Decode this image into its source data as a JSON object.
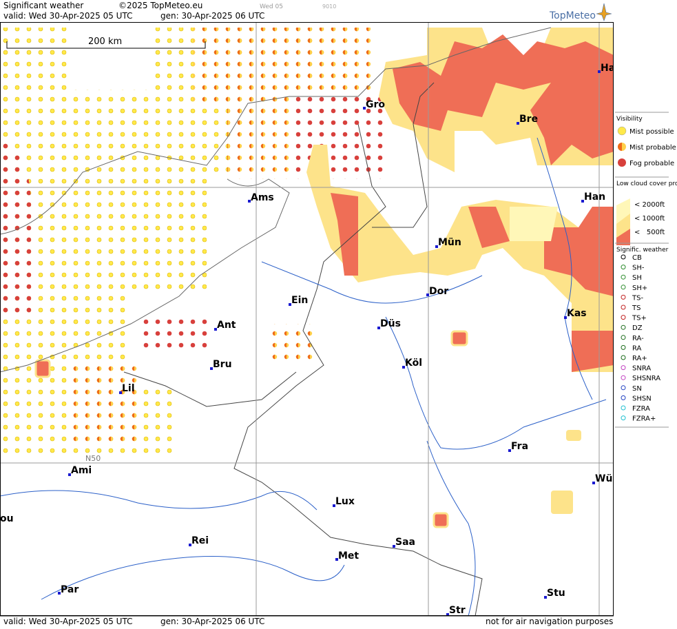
{
  "header": {
    "title": "Significant weather",
    "copyright": "©2025 TopMeteo.eu",
    "step": "Wed 05",
    "code": "9010",
    "valid": "valid:  Wed  30-Apr-2025  05 UTC",
    "generated": "gen:  30-Apr-2025  06 UTC",
    "brand": "TopMeteo"
  },
  "map": {
    "scale": "200 km",
    "grid_label": "N50",
    "cities": [
      {
        "label": "Ha"
      },
      {
        "label": "Gro"
      },
      {
        "label": "Bre"
      },
      {
        "label": "Ams"
      },
      {
        "label": "Han"
      },
      {
        "label": "Mün"
      },
      {
        "label": "Dor"
      },
      {
        "label": "Ein"
      },
      {
        "label": "Ant"
      },
      {
        "label": "Düs"
      },
      {
        "label": "Kas"
      },
      {
        "label": "Bru"
      },
      {
        "label": "Köl"
      },
      {
        "label": "Lil"
      },
      {
        "label": "Fra"
      },
      {
        "label": "Ami"
      },
      {
        "label": "Wü"
      },
      {
        "label": "Lux"
      },
      {
        "label": "ou"
      },
      {
        "label": "Rei"
      },
      {
        "label": "Saa"
      },
      {
        "label": "Met"
      },
      {
        "label": "Par"
      },
      {
        "label": "Stu"
      },
      {
        "label": "Str"
      }
    ]
  },
  "legend": {
    "visibility": {
      "title": "Visibility",
      "items": [
        "Mist possible",
        "Mist probable",
        "Fog probable"
      ]
    },
    "low_cloud": {
      "title": "Low cloud cover probable",
      "items": [
        "< 2000ft",
        "< 1000ft",
        "<   500ft"
      ]
    },
    "weather": {
      "title": "Signific. weather",
      "items": [
        "CB",
        "SH-",
        "SH",
        "SH+",
        "TS-",
        "TS",
        "TS+",
        "DZ",
        "RA-",
        "RA",
        "RA+",
        "SNRA",
        "SHSNRA",
        "SN",
        "SHSN",
        "FZRA",
        "FZRA+"
      ]
    }
  },
  "footer": {
    "valid": "valid:  Wed  30-Apr-2025  05 UTC",
    "generated": "gen:  30-Apr-2025 06 UTC",
    "note": "not for air navigation purposes"
  }
}
